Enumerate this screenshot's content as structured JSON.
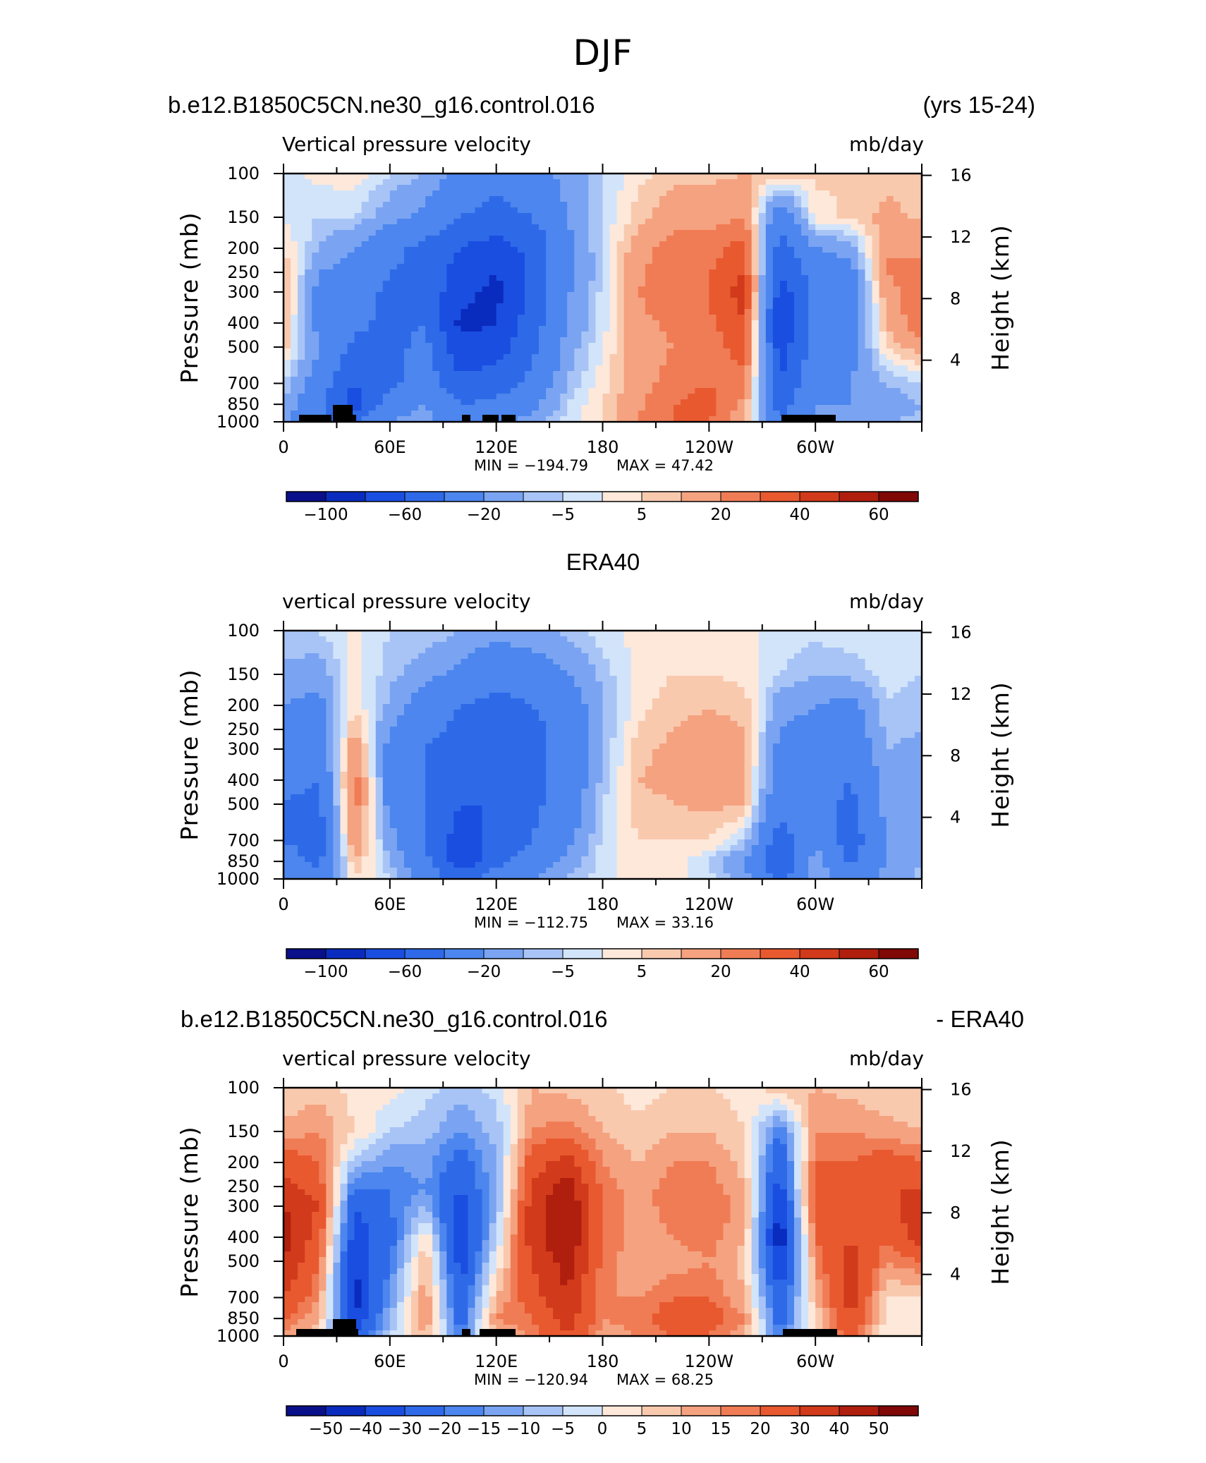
{
  "suptitle": "DJF",
  "chart_data": [
    {
      "type": "heatmap",
      "case_left": "b.e12.B1850C5CN.ne30_g16.control.016",
      "case_right": "(yrs 15-24)",
      "title_left": "Vertical pressure velocity",
      "title_right": "mb/day",
      "ylabel": "Pressure (mb)",
      "ylabel2": "Height (km)",
      "xticks": [
        "0",
        "60E",
        "120E",
        "180",
        "120W",
        "60W"
      ],
      "yticks": [
        "100",
        "150",
        "200",
        "250",
        "300",
        "400",
        "500",
        "700",
        "850",
        "1000"
      ],
      "yticks2": [
        "16",
        "12",
        "8",
        "4"
      ],
      "min_text": "MIN = −194.79",
      "max_text": "MAX =   47.42",
      "colorbar_labels": [
        "−100",
        "−60",
        "−20",
        "−5",
        "5",
        "20",
        "40",
        "60"
      ],
      "levels": [
        -120,
        -100,
        -80,
        -60,
        -40,
        -20,
        -10,
        -5,
        0,
        5,
        10,
        20,
        30,
        40,
        50,
        60,
        70
      ],
      "lon": [
        0,
        20,
        40,
        60,
        80,
        100,
        120,
        140,
        160,
        180,
        200,
        220,
        240,
        260,
        280,
        300,
        320,
        340,
        360
      ],
      "plev": [
        100,
        150,
        200,
        250,
        300,
        400,
        500,
        700,
        850,
        1000
      ],
      "values": [
        [
          -3,
          2,
          3,
          -5,
          -10,
          -25,
          -35,
          -30,
          -15,
          -5,
          3,
          8,
          8,
          10,
          8,
          6,
          5,
          8,
          6
        ],
        [
          -1,
          -5,
          -5,
          -15,
          -25,
          -40,
          -45,
          -40,
          -20,
          -5,
          8,
          15,
          15,
          20,
          -35,
          3,
          6,
          12,
          9
        ],
        [
          5,
          -10,
          -20,
          -35,
          -45,
          -60,
          -70,
          -55,
          -25,
          -3,
          15,
          25,
          25,
          35,
          -50,
          -20,
          -15,
          20,
          15
        ],
        [
          10,
          -20,
          -25,
          -40,
          -45,
          -70,
          -80,
          -55,
          -25,
          -5,
          18,
          28,
          30,
          40,
          -60,
          -30,
          -25,
          20,
          25
        ],
        [
          12,
          -25,
          -30,
          -45,
          -45,
          -75,
          -85,
          -55,
          -22,
          -3,
          20,
          25,
          30,
          45,
          -70,
          -35,
          -30,
          15,
          30
        ],
        [
          10,
          -25,
          -35,
          -45,
          -40,
          -85,
          -80,
          -50,
          -20,
          -3,
          18,
          22,
          28,
          40,
          -80,
          -35,
          -30,
          10,
          28
        ],
        [
          8,
          -20,
          -45,
          -45,
          -35,
          -75,
          -70,
          -45,
          -15,
          0,
          15,
          20,
          25,
          35,
          -70,
          -30,
          -25,
          5,
          15
        ],
        [
          -5,
          -30,
          -60,
          -45,
          -30,
          -55,
          -50,
          -35,
          -10,
          3,
          15,
          25,
          30,
          25,
          -60,
          -25,
          -20,
          -10,
          -5
        ],
        [
          -10,
          -35,
          -70,
          -30,
          -20,
          -40,
          -35,
          -25,
          -5,
          5,
          18,
          30,
          35,
          15,
          -50,
          -20,
          -20,
          -15,
          -10
        ],
        [
          -15,
          -40,
          -40,
          -20,
          -15,
          -30,
          -25,
          -15,
          -3,
          5,
          20,
          30,
          30,
          10,
          -40,
          -15,
          -15,
          -10,
          -8
        ]
      ]
    },
    {
      "type": "heatmap",
      "case_left": "ERA40",
      "title_left": "vertical pressure velocity",
      "title_right": "mb/day",
      "ylabel": "Pressure (mb)",
      "ylabel2": "Height (km)",
      "xticks": [
        "0",
        "60E",
        "120E",
        "180",
        "120W",
        "60W"
      ],
      "yticks": [
        "100",
        "150",
        "200",
        "250",
        "300",
        "400",
        "500",
        "700",
        "850",
        "1000"
      ],
      "yticks2": [
        "16",
        "12",
        "8",
        "4"
      ],
      "min_text": "MIN = −112.75",
      "max_text": "MAX =   33.16",
      "colorbar_labels": [
        "−100",
        "−60",
        "−20",
        "−5",
        "5",
        "20",
        "40",
        "60"
      ],
      "levels": [
        -120,
        -100,
        -80,
        -60,
        -40,
        -20,
        -10,
        -5,
        0,
        5,
        10,
        20,
        30,
        40,
        50,
        60,
        70
      ],
      "lon": [
        0,
        20,
        40,
        60,
        80,
        100,
        120,
        140,
        160,
        180,
        200,
        220,
        240,
        260,
        280,
        300,
        320,
        340,
        360
      ],
      "plev": [
        100,
        150,
        200,
        250,
        300,
        400,
        500,
        700,
        850,
        1000
      ],
      "values": [
        [
          -5,
          -5,
          2,
          -5,
          -5,
          -10,
          -15,
          -12,
          -8,
          -2,
          2,
          3,
          3,
          2,
          -2,
          -3,
          -2,
          -2,
          -3
        ],
        [
          -12,
          -15,
          2,
          -8,
          -15,
          -25,
          -35,
          -30,
          -20,
          -8,
          2,
          5,
          5,
          3,
          -5,
          -10,
          -8,
          -3,
          -5
        ],
        [
          -20,
          -25,
          5,
          -12,
          -30,
          -40,
          -45,
          -40,
          -30,
          -10,
          3,
          8,
          10,
          8,
          -15,
          -20,
          -25,
          -5,
          -8
        ],
        [
          -25,
          -30,
          10,
          -20,
          -35,
          -45,
          -50,
          -45,
          -35,
          -10,
          5,
          10,
          12,
          10,
          -20,
          -25,
          -30,
          -8,
          -10
        ],
        [
          -30,
          -35,
          20,
          -25,
          -40,
          -50,
          -55,
          -45,
          -35,
          -10,
          8,
          12,
          15,
          12,
          -25,
          -30,
          -35,
          -10,
          -12
        ],
        [
          -35,
          -40,
          25,
          -25,
          -40,
          -55,
          -60,
          -45,
          -35,
          -8,
          10,
          12,
          15,
          12,
          -30,
          -30,
          -40,
          -15,
          -12
        ],
        [
          -40,
          -45,
          25,
          -25,
          -40,
          -60,
          -60,
          -45,
          -30,
          -5,
          8,
          10,
          12,
          10,
          -35,
          -30,
          -45,
          -15,
          -10
        ],
        [
          -40,
          -50,
          20,
          -15,
          -40,
          -70,
          -55,
          -40,
          -25,
          -3,
          5,
          5,
          5,
          -5,
          -50,
          -20,
          -50,
          -20,
          -10
        ],
        [
          -30,
          -45,
          10,
          -10,
          -35,
          -75,
          -45,
          -30,
          -15,
          -2,
          3,
          2,
          -5,
          -20,
          -60,
          -15,
          -45,
          -20,
          -10
        ],
        [
          -20,
          -30,
          5,
          -5,
          -25,
          -50,
          -30,
          -20,
          -10,
          -2,
          3,
          2,
          -3,
          -15,
          -45,
          -10,
          -30,
          -15,
          -8
        ]
      ]
    },
    {
      "type": "heatmap",
      "case_left": "b.e12.B1850C5CN.ne30_g16.control.016",
      "case_right": "- ERA40",
      "title_left": "vertical pressure velocity",
      "title_right": "mb/day",
      "ylabel": "Pressure (mb)",
      "ylabel2": "Height (km)",
      "xticks": [
        "0",
        "60E",
        "120E",
        "180",
        "120W",
        "60W"
      ],
      "yticks": [
        "100",
        "150",
        "200",
        "250",
        "300",
        "400",
        "500",
        "700",
        "850",
        "1000"
      ],
      "yticks2": [
        "16",
        "12",
        "8",
        "4"
      ],
      "min_text": "MIN = −120.94",
      "max_text": "MAX =   68.25",
      "colorbar_labels": [
        "−50",
        "−40",
        "−30",
        "−20",
        "−15",
        "−10",
        "−5",
        "0",
        "5",
        "10",
        "15",
        "20",
        "30",
        "40",
        "50"
      ],
      "levels": [
        -60,
        -50,
        -40,
        -30,
        -20,
        -15,
        -10,
        -5,
        0,
        5,
        10,
        15,
        20,
        30,
        40,
        50,
        60
      ],
      "lon": [
        0,
        20,
        40,
        60,
        80,
        100,
        120,
        140,
        160,
        180,
        200,
        220,
        240,
        260,
        280,
        300,
        320,
        340,
        360
      ],
      "plev": [
        100,
        150,
        200,
        250,
        300,
        400,
        500,
        700,
        850,
        1000
      ],
      "values": [
        [
          5,
          8,
          3,
          2,
          -3,
          -8,
          -3,
          10,
          8,
          6,
          3,
          5,
          5,
          3,
          8,
          10,
          8,
          6,
          5
        ],
        [
          12,
          15,
          5,
          -5,
          -8,
          -15,
          -8,
          15,
          18,
          10,
          6,
          10,
          10,
          5,
          -20,
          15,
          15,
          12,
          10
        ],
        [
          25,
          20,
          -8,
          -15,
          -12,
          -25,
          -10,
          25,
          35,
          15,
          10,
          15,
          15,
          8,
          -30,
          20,
          20,
          25,
          20
        ],
        [
          35,
          25,
          -20,
          -20,
          -15,
          -30,
          -10,
          30,
          45,
          18,
          12,
          18,
          18,
          10,
          -35,
          25,
          25,
          30,
          30
        ],
        [
          40,
          30,
          -30,
          -20,
          -10,
          -35,
          -10,
          35,
          50,
          20,
          12,
          18,
          20,
          12,
          -40,
          25,
          25,
          25,
          40
        ],
        [
          45,
          25,
          -35,
          -25,
          5,
          -40,
          -5,
          35,
          50,
          20,
          12,
          15,
          18,
          10,
          -50,
          20,
          30,
          20,
          35
        ],
        [
          40,
          20,
          -40,
          -20,
          10,
          -35,
          0,
          30,
          45,
          18,
          10,
          12,
          15,
          8,
          -40,
          15,
          35,
          15,
          20
        ],
        [
          30,
          15,
          -45,
          -15,
          15,
          -30,
          10,
          25,
          40,
          15,
          15,
          20,
          20,
          10,
          -30,
          10,
          35,
          5,
          5
        ],
        [
          20,
          10,
          -40,
          -10,
          15,
          -25,
          15,
          20,
          35,
          15,
          18,
          25,
          25,
          15,
          -25,
          5,
          30,
          3,
          3
        ],
        [
          15,
          5,
          -30,
          -5,
          10,
          -20,
          10,
          15,
          30,
          12,
          15,
          20,
          20,
          10,
          -20,
          3,
          25,
          2,
          2
        ]
      ]
    }
  ],
  "colors": {
    "palette": [
      "#0a0f8a",
      "#0a2cbe",
      "#1a4ee0",
      "#2e6ae8",
      "#4c86ee",
      "#7aa4f2",
      "#a8c4f6",
      "#d2e4fa",
      "#fde8da",
      "#f9c9ae",
      "#f5a280",
      "#f07c55",
      "#e8592f",
      "#d13a1a",
      "#b01e0e",
      "#800806"
    ],
    "land": "#000000"
  }
}
